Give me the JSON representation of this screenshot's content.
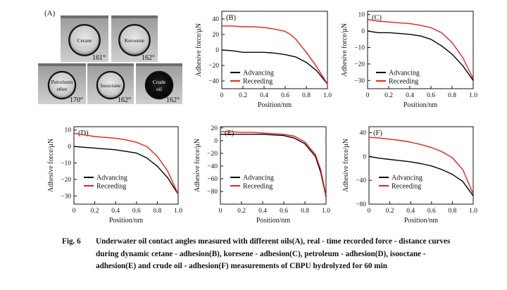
{
  "panel_a": {
    "label": "(A)",
    "photos": [
      {
        "oil": "Cetane",
        "angle": "161°",
        "dark": false
      },
      {
        "oil": "Kerosene",
        "angle": "162°",
        "dark": false
      },
      {
        "oil": "Petroleum ether",
        "angle": "170°",
        "dark": false
      },
      {
        "oil": "Isooctane",
        "angle": "162°",
        "dark": false
      },
      {
        "oil": "Crude oil",
        "angle": "162°",
        "dark": true
      }
    ]
  },
  "colors": {
    "advancing": "#000000",
    "receding": "#e8201e"
  },
  "chart_data": [
    {
      "type": "line",
      "label": "(B)",
      "xlabel": "Position/nm",
      "ylabel": "Adhesive force/μN",
      "xlim": [
        0,
        1.0
      ],
      "ylim": [
        -50,
        50
      ],
      "xticks": [
        "0",
        "0.2",
        "0.4",
        "0.6",
        "0.8",
        "1.0"
      ],
      "yticks": [
        "40",
        "20",
        "0",
        "−20",
        "−40"
      ],
      "legend": "lower-left",
      "series": [
        {
          "name": "Advancing",
          "color": "#000000",
          "x": [
            0,
            0.1,
            0.2,
            0.3,
            0.4,
            0.5,
            0.6,
            0.7,
            0.8,
            0.9,
            1.0
          ],
          "y": [
            0,
            -1,
            -3,
            -3,
            -3,
            -4,
            -6,
            -9,
            -16,
            -27,
            -44
          ]
        },
        {
          "name": "Receeding",
          "color": "#e8201e",
          "x": [
            0,
            0.1,
            0.2,
            0.3,
            0.4,
            0.5,
            0.6,
            0.65,
            0.7,
            0.8,
            0.9,
            1.0
          ],
          "y": [
            31,
            31,
            30,
            30,
            29,
            27,
            24,
            20,
            14,
            -3,
            -22,
            -44
          ]
        }
      ]
    },
    {
      "type": "line",
      "label": "(C)",
      "xlabel": "Position/nm",
      "ylabel": "Adhesive force/μN",
      "xlim": [
        0,
        1.0
      ],
      "ylim": [
        -35,
        12
      ],
      "xticks": [
        "0",
        "0.2",
        "0.4",
        "0.6",
        "0.8",
        "1.0"
      ],
      "yticks": [
        "10",
        "0",
        "−10",
        "−20",
        "−30"
      ],
      "legend": "lower-left",
      "series": [
        {
          "name": "Advancing",
          "color": "#000000",
          "x": [
            0,
            0.1,
            0.2,
            0.3,
            0.4,
            0.5,
            0.6,
            0.7,
            0.8,
            0.9,
            1.0
          ],
          "y": [
            0,
            -1,
            -1,
            -1.5,
            -2,
            -3,
            -5,
            -9,
            -14,
            -21,
            -30
          ]
        },
        {
          "name": "Receeding",
          "color": "#e8201e",
          "x": [
            0,
            0.1,
            0.2,
            0.3,
            0.4,
            0.5,
            0.6,
            0.7,
            0.8,
            0.9,
            1.0
          ],
          "y": [
            7,
            6,
            5.5,
            5,
            4.5,
            3.5,
            2,
            -1,
            -7,
            -16,
            -29
          ]
        }
      ]
    },
    {
      "type": "line",
      "label": "(D)",
      "xlabel": "Position/nm",
      "ylabel": "Adhesive force/μN",
      "xlim": [
        0,
        1.0
      ],
      "ylim": [
        -35,
        12
      ],
      "xticks": [
        "0",
        "0.2",
        "0.4",
        "0.6",
        "0.8",
        "1.0"
      ],
      "yticks": [
        "10",
        "0",
        "−10",
        "−20",
        "−30"
      ],
      "legend": "lower-left",
      "series": [
        {
          "name": "Advancing",
          "color": "#000000",
          "x": [
            0,
            0.1,
            0.2,
            0.3,
            0.4,
            0.5,
            0.6,
            0.7,
            0.8,
            0.9,
            1.0
          ],
          "y": [
            0,
            -0.5,
            -1,
            -1.5,
            -2,
            -3,
            -4,
            -7,
            -12,
            -19,
            -29
          ]
        },
        {
          "name": "Receeding",
          "color": "#e8201e",
          "x": [
            0,
            0.1,
            0.2,
            0.3,
            0.4,
            0.5,
            0.6,
            0.7,
            0.8,
            0.9,
            1.0
          ],
          "y": [
            8,
            7,
            6,
            5.5,
            5,
            4,
            2.5,
            0,
            -6,
            -15,
            -29
          ]
        }
      ]
    },
    {
      "type": "line",
      "label": "(E)",
      "xlabel": "Position/nm",
      "ylabel": "Adhesive force/μN",
      "xlim": [
        0,
        1.0
      ],
      "ylim": [
        -100,
        22
      ],
      "xticks": [
        "0",
        "0.2",
        "0.4",
        "0.6",
        "0.8",
        "1.0"
      ],
      "yticks": [
        "20",
        "0",
        "−20",
        "−40",
        "−60",
        "−80"
      ],
      "legend": "lower-left",
      "series": [
        {
          "name": "Advancing",
          "color": "#000000",
          "x": [
            0,
            0.1,
            0.2,
            0.3,
            0.4,
            0.5,
            0.6,
            0.7,
            0.8,
            0.9,
            0.95,
            1.0
          ],
          "y": [
            10,
            10,
            10,
            10,
            10,
            9,
            8,
            4,
            -5,
            -25,
            -50,
            -88
          ]
        },
        {
          "name": "Receeding",
          "color": "#e8201e",
          "x": [
            0,
            0.1,
            0.2,
            0.3,
            0.4,
            0.5,
            0.6,
            0.7,
            0.8,
            0.9,
            0.95,
            1.0
          ],
          "y": [
            14,
            14,
            13,
            13,
            12,
            11,
            10,
            7,
            -2,
            -22,
            -46,
            -86
          ]
        }
      ]
    },
    {
      "type": "line",
      "label": "(F)",
      "xlabel": "Position/nm",
      "ylabel": "Adhesive force/μN",
      "xlim": [
        0,
        1.0
      ],
      "ylim": [
        -80,
        50
      ],
      "xticks": [
        "0",
        "0.2",
        "0.4",
        "0.6",
        "0.8",
        "1.0"
      ],
      "yticks": [
        "40",
        "0",
        "−40",
        "−80"
      ],
      "legend": "lower-left",
      "series": [
        {
          "name": "Advancing",
          "color": "#000000",
          "x": [
            0,
            0.1,
            0.2,
            0.3,
            0.4,
            0.5,
            0.6,
            0.7,
            0.8,
            0.9,
            1.0
          ],
          "y": [
            0,
            -3,
            -5,
            -7,
            -9,
            -12,
            -16,
            -22,
            -30,
            -42,
            -66
          ]
        },
        {
          "name": "Receeding",
          "color": "#e8201e",
          "x": [
            0,
            0.1,
            0.2,
            0.3,
            0.4,
            0.5,
            0.6,
            0.7,
            0.8,
            0.9,
            1.0
          ],
          "y": [
            32,
            31,
            29,
            27,
            24,
            20,
            15,
            8,
            -2,
            -22,
            -63
          ]
        }
      ]
    }
  ],
  "caption": {
    "label": "Fig. 6",
    "text": "Underwater oil contact angles measured with different oils(A), real - time recorded force - distance curves during dynamic cetane - adhesion(B), koresene - adhesion(C), petroleum - adhesion(D), isooctane - adhesion(E) and crude oil - adhesion(F) measurements of CBPU hydrolyzed for 60 min"
  }
}
